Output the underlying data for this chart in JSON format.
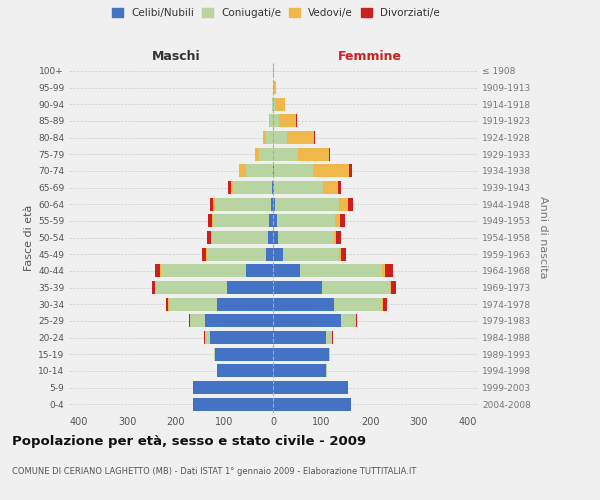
{
  "age_groups": [
    "0-4",
    "5-9",
    "10-14",
    "15-19",
    "20-24",
    "25-29",
    "30-34",
    "35-39",
    "40-44",
    "45-49",
    "50-54",
    "55-59",
    "60-64",
    "65-69",
    "70-74",
    "75-79",
    "80-84",
    "85-89",
    "90-94",
    "95-99",
    "100+"
  ],
  "birth_years": [
    "2004-2008",
    "1999-2003",
    "1994-1998",
    "1989-1993",
    "1984-1988",
    "1979-1983",
    "1974-1978",
    "1969-1973",
    "1964-1968",
    "1959-1963",
    "1954-1958",
    "1949-1953",
    "1944-1948",
    "1939-1943",
    "1934-1938",
    "1929-1933",
    "1924-1928",
    "1919-1923",
    "1914-1918",
    "1909-1913",
    "≤ 1908"
  ],
  "maschi_celibi": [
    165,
    165,
    115,
    120,
    130,
    140,
    115,
    95,
    55,
    15,
    10,
    8,
    4,
    2,
    1,
    0,
    0,
    0,
    0,
    0,
    0
  ],
  "maschi_coniugati": [
    0,
    0,
    0,
    2,
    10,
    30,
    100,
    145,
    175,
    120,
    115,
    115,
    115,
    80,
    55,
    28,
    15,
    6,
    2,
    1,
    0
  ],
  "maschi_vedovi": [
    0,
    0,
    0,
    0,
    1,
    1,
    1,
    2,
    2,
    2,
    2,
    2,
    5,
    5,
    15,
    10,
    5,
    2,
    0,
    0,
    0
  ],
  "maschi_divorziati": [
    0,
    0,
    0,
    0,
    1,
    2,
    5,
    8,
    10,
    10,
    8,
    8,
    5,
    5,
    0,
    0,
    0,
    0,
    0,
    0,
    0
  ],
  "femmine_celibi": [
    160,
    155,
    110,
    115,
    110,
    140,
    125,
    100,
    55,
    20,
    10,
    8,
    5,
    3,
    2,
    1,
    1,
    1,
    0,
    0,
    0
  ],
  "femmine_coniugati": [
    0,
    0,
    1,
    2,
    12,
    30,
    100,
    140,
    170,
    115,
    115,
    120,
    130,
    100,
    80,
    50,
    28,
    12,
    5,
    2,
    0
  ],
  "femmine_vedovi": [
    0,
    0,
    0,
    0,
    0,
    1,
    1,
    2,
    5,
    5,
    5,
    10,
    20,
    30,
    75,
    65,
    55,
    35,
    20,
    5,
    2
  ],
  "femmine_divorziati": [
    0,
    0,
    0,
    0,
    1,
    2,
    8,
    12,
    18,
    10,
    10,
    10,
    10,
    8,
    5,
    2,
    2,
    2,
    0,
    0,
    0
  ],
  "color_celibi": "#4472c4",
  "color_coniugati": "#b8d4a0",
  "color_vedovi": "#f0b84a",
  "color_divorziati": "#cc2020",
  "xlim": 420,
  "title": "Popolazione per età, sesso e stato civile - 2009",
  "subtitle": "COMUNE DI CERIANO LAGHETTO (MB) - Dati ISTAT 1° gennaio 2009 - Elaborazione TUTTITALIA.IT",
  "ylabel_left": "Fasce di età",
  "ylabel_right": "Anni di nascita",
  "label_maschi": "Maschi",
  "label_femmine": "Femmine",
  "legend_celibi": "Celibi/Nubili",
  "legend_coniugati": "Coniugati/e",
  "legend_vedovi": "Vedovi/e",
  "legend_divorziati": "Divorziati/e",
  "bg_color": "#f0f0f0",
  "bar_height": 0.78
}
